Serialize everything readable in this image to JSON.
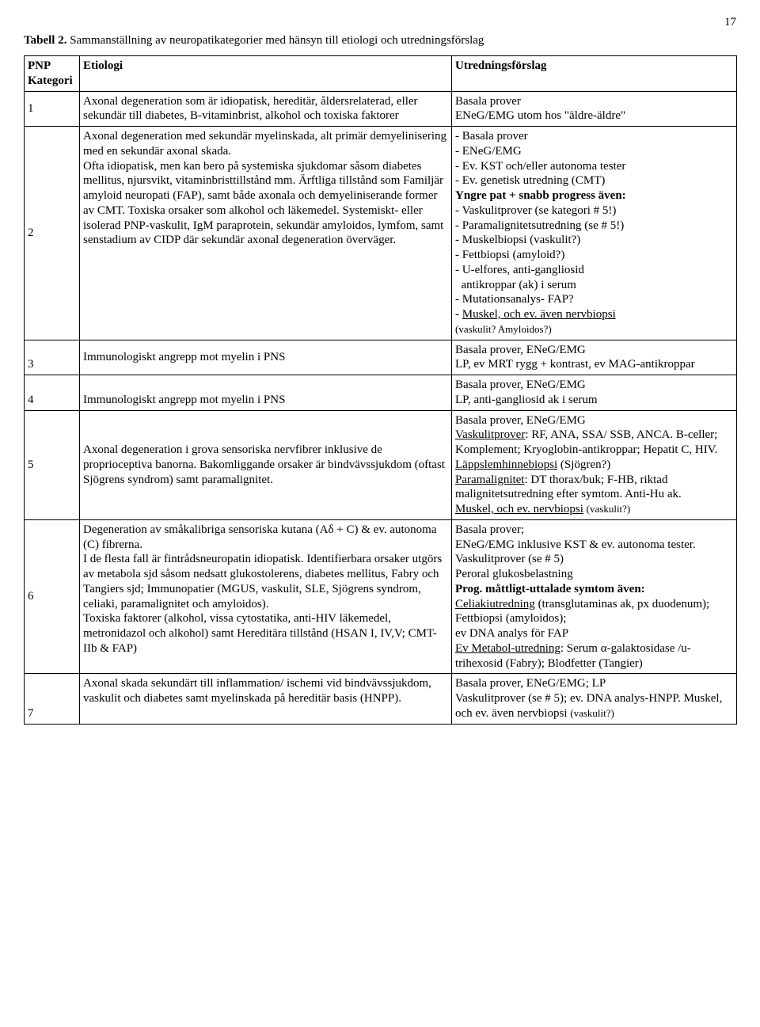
{
  "page_number": "17",
  "caption_bold": "Tabell 2.",
  "caption_rest": " Sammanställning av neuropatikategorier med hänsyn till etiologi och utredningsförslag",
  "headers": {
    "col1": "PNP\nKategori",
    "col2": "Etiologi",
    "col3": "Utredningsförslag"
  },
  "rows": [
    {
      "n": "1",
      "etio": "Axonal degeneration som är idiopatisk, hereditär, åldersrelaterad, eller sekundär till diabetes, B-vitaminbrist, alkohol och toxiska faktorer",
      "utr": "Basala prover\nENeG/EMG utom hos \"äldre-äldre\""
    },
    {
      "n": "2",
      "etio": "Axonal degeneration med sekundär myelinskada, alt primär demyelinisering med en sekundär axonal skada.\nOfta idiopatisk, men kan bero på systemiska sjukdomar såsom diabetes mellitus, njursvikt, vitaminbristtillstånd mm. Ärftliga tillstånd som Familjär amyloid neuropati (FAP), samt både axonala och demyeliniserande former av CMT. Toxiska orsaker som alkohol och läkemedel. Systemiskt- eller isolerad PNP-vaskulit, IgM paraprotein, sekundär amyloidos, lymfom, samt senstadium av CIDP där sekundär axonal degeneration överväger.",
      "utr_html": "- Basala prover<br>- ENeG/EMG<br>- Ev. KST och/eller autonoma tester<br>- Ev. genetisk utredning (CMT)<br><b>Yngre pat + snabb progress även:</b><br>- Vaskulitprover (se kategori # 5!)<br>- Paramalignitetsutredning (se # 5!)<br>- Muskelbiopsi (vaskulit?)<br>- Fettbiopsi (amyloid?)<br>- U-elfores, anti-gangliosid<br>&nbsp;&nbsp;antikroppar (ak) i serum<br>- Mutationsanalys- FAP?<br>- <u>Muskel, och ev. även nervbiopsi</u><br><span style='font-size:13px'>(vaskulit? Amyloidos?)</span>"
    },
    {
      "n": "3",
      "etio": "Immunologiskt angrepp mot myelin i PNS",
      "utr": "Basala prover, ENeG/EMG\nLP, ev MRT rygg + kontrast, ev MAG-antikroppar"
    },
    {
      "n": "4",
      "etio": "Immunologiskt angrepp mot myelin i PNS",
      "utr": "Basala prover, ENeG/EMG\nLP, anti-gangliosid ak i serum"
    },
    {
      "n": "5",
      "etio": "Axonal degeneration i grova sensoriska nervfibrer inklusive de proprioceptiva banorna. Bakomliggande orsaker är bindvävssjukdom (oftast Sjögrens syndrom) samt paramalignitet.",
      "utr_html": "Basala prover, ENeG/EMG<br><u>Vaskulitprover</u>: RF, ANA, SSA/ SSB, ANCA. B-celler; Komplement; Kryoglobin-antikroppar; Hepatit C, HIV. <u>Läppslemhinnebiopsi</u> (Sjögren?)<br><u>Paramalignitet</u>: DT thorax/buk; F-HB, riktad malignitetsutredning efter symtom. Anti-Hu ak.<br><u>Muskel, och ev. nervbiopsi</u> <span style='font-size:13px'>(vaskulit?)</span>"
    },
    {
      "n": "6",
      "etio": "Degeneration av småkalibriga sensoriska kutana (Aδ + C) & ev. autonoma (C) fibrerna.\nI de flesta fall är fintrådsneuropatin idiopatisk. Identifierbara orsaker utgörs av metabola sjd såsom nedsatt glukostolerens, diabetes mellitus, Fabry och Tangiers sjd; Immunopatier (MGUS, vaskulit, SLE, Sjögrens syndrom, celiaki, paramalignitet och amyloidos).\nToxiska faktorer (alkohol, vissa cytostatika, anti-HIV läkemedel, metronidazol och alkohol) samt Hereditära tillstånd (HSAN I, IV,V;  CMT-IIb &  FAP)",
      "utr_html": "Basala prover;<br>ENeG/EMG inklusive KST & ev. autonoma tester.<br>Vaskulitprover (se # 5)<br>Peroral glukosbelastning<br><b>Prog. måttligt-uttalade symtom även:</b><br><u>Celiakiutredning</u> (transglutaminas ak, px duodenum); Fettbiopsi (amyloidos);<br>ev DNA analys för FAP<br><u>Ev Metabol-utredning</u>: Serum α-galaktosidase /u-trihexosid (Fabry); Blodfetter (Tangier)"
    },
    {
      "n": "7",
      "etio": "Axonal skada sekundärt till inflammation/ ischemi vid bindvävssjukdom, vaskulit och diabetes samt myelinskada på hereditär basis (HNPP).",
      "utr_html": "Basala prover, ENeG/EMG; LP<br>Vaskulitprover (se # 5); ev. DNA analys-HNPP. Muskel, och ev. även nervbiopsi <span style='font-size:13px'>(vaskulit?)</span>"
    }
  ]
}
